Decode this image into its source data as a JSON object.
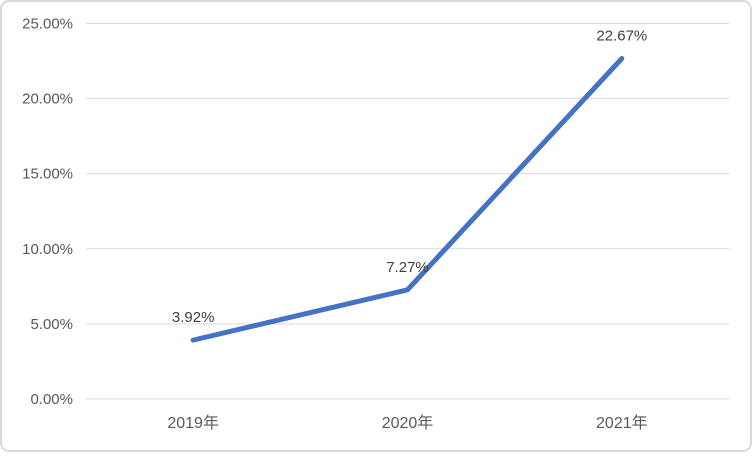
{
  "chart": {
    "background": "#ffffff",
    "border_color": "#d9d9d9"
  },
  "chart_data": {
    "type": "line",
    "title": "",
    "xlabel": "",
    "ylabel": "",
    "categories": [
      "2019年",
      "2020年",
      "2021年"
    ],
    "series": [
      {
        "name": "series-1",
        "values": [
          3.92,
          7.27,
          22.67
        ],
        "color": "#4472C4",
        "stroke_width": 5
      }
    ],
    "data_labels": [
      "3.92%",
      "7.27%",
      "22.67%"
    ],
    "y_ticks": [
      "0.00%",
      "5.00%",
      "10.00%",
      "15.00%",
      "20.00%",
      "25.00%"
    ],
    "y_tick_values": [
      0,
      5,
      10,
      15,
      20,
      25
    ],
    "ylim": [
      0,
      25
    ],
    "grid": true,
    "legend": "none",
    "gridline_color": "#d9d9d9",
    "axis_label_color": "#595959",
    "data_label_color": "#404040"
  }
}
